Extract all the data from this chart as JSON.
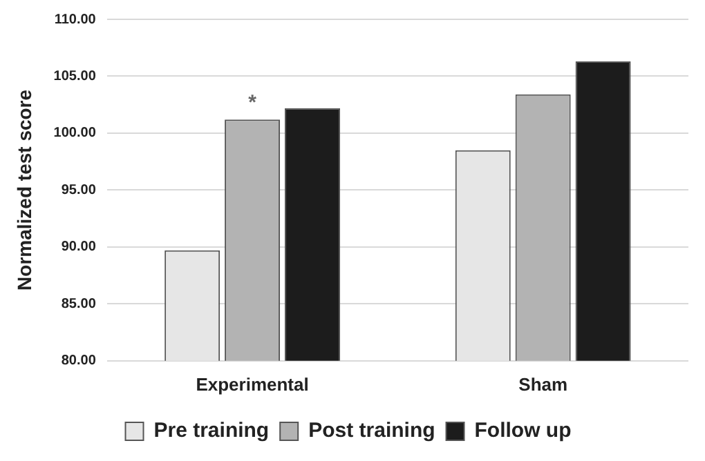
{
  "chart_data": {
    "type": "bar",
    "ylabel": "Normalized test score",
    "categories": [
      "Experimental",
      "Sham"
    ],
    "series": [
      {
        "name": "Pre training",
        "color": "#e6e6e6",
        "values": [
          89.7,
          98.5
        ]
      },
      {
        "name": "Post training",
        "color": "#b3b3b3",
        "values": [
          101.2,
          103.4
        ]
      },
      {
        "name": "Follow up",
        "color": "#1c1c1c",
        "values": [
          102.2,
          106.3
        ]
      }
    ],
    "ylim": [
      80,
      110
    ],
    "yticks": [
      {
        "value": 80,
        "label": "80.00"
      },
      {
        "value": 85,
        "label": "85.00"
      },
      {
        "value": 90,
        "label": "90.00"
      },
      {
        "value": 95,
        "label": "95.00"
      },
      {
        "value": 100,
        "label": "100.00"
      },
      {
        "value": 105,
        "label": "105.00"
      },
      {
        "value": 110,
        "label": "110.00"
      }
    ],
    "grid": "y",
    "legend": "bottom",
    "annotations": [
      {
        "text": "*",
        "x": "Experimental",
        "y": 101.2
      }
    ]
  }
}
